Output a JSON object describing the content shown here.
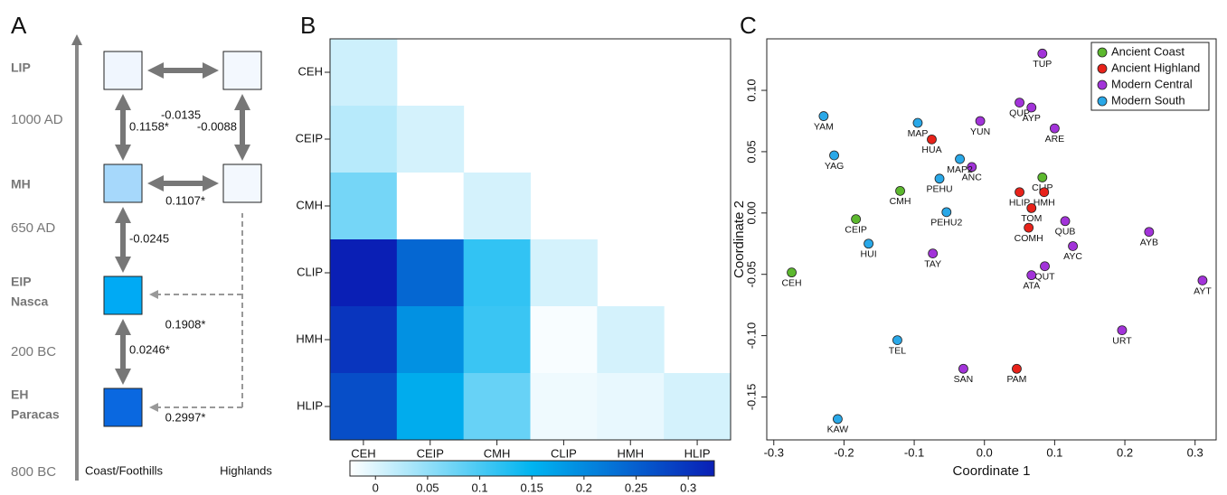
{
  "panel_a": {
    "panel": "A",
    "periods": [
      [
        "LIP"
      ],
      [
        "MH"
      ],
      [
        "EIP",
        "Nasca"
      ],
      [
        "EH",
        "Paracas"
      ]
    ],
    "dates": [
      "1000 AD",
      "650 AD",
      "200 BC",
      "800 BC"
    ],
    "columns": [
      "Coast/Foothills",
      "Highlands"
    ],
    "links": [
      "-0.0135",
      "0.1158*",
      "-0.0088",
      "0.1107*",
      "-0.0245",
      "0.1908*",
      "0.0246*",
      "0.2997*"
    ]
  },
  "chart_data": [
    {
      "type": "heatmap",
      "panel": "B",
      "x": [
        "CEH",
        "CEIP",
        "CMH",
        "CLIP",
        "HMH",
        "HLIP"
      ],
      "y": [
        "CEH",
        "CEIP",
        "CMH",
        "CLIP",
        "HMH",
        "HLIP"
      ],
      "values": [
        [
          0.01,
          null,
          null,
          null,
          null,
          null
        ],
        [
          0.0246,
          0.005,
          null,
          null,
          null,
          null
        ],
        [
          0.07,
          -0.0245,
          0.005,
          null,
          null,
          null
        ],
        [
          0.325,
          0.24,
          0.1158,
          0.005,
          null,
          null
        ],
        [
          0.2997,
          0.1908,
          0.1107,
          -0.02,
          0.005,
          null
        ],
        [
          0.27,
          0.16,
          0.08,
          -0.0135,
          -0.0088,
          0.005
        ]
      ],
      "colormap": [
        "#ffffff",
        "#00b4f0",
        "#0a1fb5"
      ],
      "clim": [
        -0.0245,
        0.325
      ],
      "colorbar_ticks": [
        0,
        0.05,
        0.1,
        0.15,
        0.2,
        0.25,
        0.3
      ]
    },
    {
      "type": "scatter",
      "panel": "C",
      "xlabel": "Coordinate 1",
      "ylabel": "Coordinate 2",
      "xlim": [
        -0.31,
        0.33
      ],
      "ylim": [
        -0.185,
        0.142
      ],
      "xticks": [
        -0.3,
        -0.2,
        -0.1,
        {
          "value": 0,
          "label": "0.0"
        },
        0.1,
        0.2,
        0.3
      ],
      "yticks": [
        {
          "value": -0.15,
          "label": "-0.15"
        },
        {
          "value": -0.1,
          "label": "-0.10"
        },
        -0.05,
        {
          "value": 0,
          "label": "0.00"
        },
        0.05,
        {
          "value": 0.1,
          "label": "0.10"
        }
      ],
      "legend": "top-right",
      "series": [
        {
          "name": "Ancient Coast",
          "color": "#5cb82e",
          "labels": [
            "CEH",
            "CEIP",
            "CMH",
            "CLIP"
          ],
          "x": [
            -0.2745,
            -0.183,
            -0.12,
            0.0825
          ],
          "values": [
            -0.0485,
            -0.005,
            0.018,
            0.029
          ]
        },
        {
          "name": "Ancient Highland",
          "color": "#e8221a",
          "labels": [
            "HUA",
            "HLIP",
            "HMH",
            "TOM",
            "COMH",
            "PAM"
          ],
          "x": [
            -0.075,
            0.05,
            0.085,
            0.067,
            0.063,
            0.046
          ],
          "values": [
            0.06,
            0.017,
            0.017,
            0.004,
            -0.012,
            -0.127
          ]
        },
        {
          "name": "Modern Central",
          "color": "#a233d9",
          "labels": [
            "TUP",
            "QUP",
            "AYP",
            "YUN",
            "ARE",
            "ANC",
            "QUB",
            "AYB",
            "AYC",
            "TAY",
            "QUT",
            "ATA",
            "AYT",
            "URT",
            "SAN"
          ],
          "x": [
            0.0825,
            0.05,
            0.067,
            -0.006,
            0.1,
            -0.018,
            0.115,
            0.2345,
            0.126,
            -0.0735,
            0.086,
            0.067,
            0.3106,
            0.196,
            -0.03
          ],
          "values": [
            0.13,
            0.09,
            0.086,
            0.075,
            0.069,
            0.0375,
            -0.0066,
            -0.0154,
            -0.027,
            -0.033,
            -0.0434,
            -0.0507,
            -0.055,
            -0.0956,
            -0.127
          ]
        },
        {
          "name": "Modern South",
          "color": "#29a8e8",
          "labels": [
            "YAM",
            "YAG",
            "MAP",
            "MAP2",
            "PEHU",
            "PEHU2",
            "HUI",
            "TEL",
            "KAW"
          ],
          "x": [
            -0.229,
            -0.214,
            -0.095,
            -0.035,
            -0.064,
            -0.054,
            -0.165,
            -0.124,
            -0.209
          ],
          "values": [
            0.079,
            0.047,
            0.0735,
            0.044,
            0.028,
            0.0007,
            -0.025,
            -0.1037,
            -0.168
          ]
        }
      ]
    }
  ]
}
